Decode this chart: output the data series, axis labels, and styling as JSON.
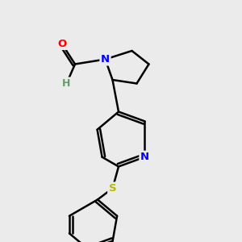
{
  "background_color": "#ebebeb",
  "bond_color": "#000000",
  "bond_width": 1.8,
  "atom_colors": {
    "N": "#0000ff",
    "O": "#ff0000",
    "S": "#b8b800",
    "H": "#6a9a6a",
    "C": "#000000"
  },
  "font_size_atoms": 9.5
}
